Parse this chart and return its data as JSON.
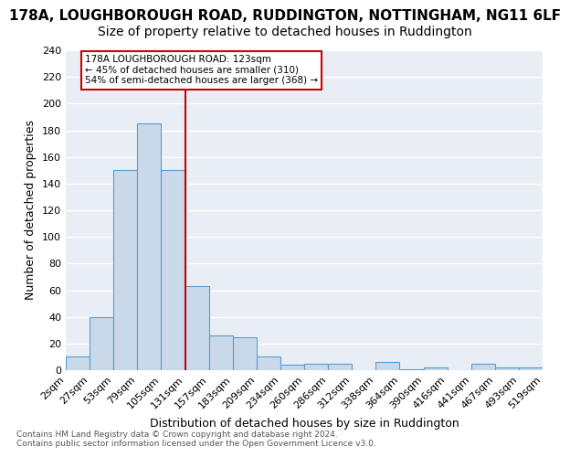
{
  "title_line1": "178A, LOUGHBOROUGH ROAD, RUDDINGTON, NOTTINGHAM, NG11 6LF",
  "title_line2": "Size of property relative to detached houses in Ruddington",
  "xlabel": "Distribution of detached houses by size in Ruddington",
  "ylabel": "Number of detached properties",
  "footer_line1": "Contains HM Land Registry data © Crown copyright and database right 2024.",
  "footer_line2": "Contains public sector information licensed under the Open Government Licence v3.0.",
  "bin_labels": [
    "2sqm",
    "27sqm",
    "53sqm",
    "79sqm",
    "105sqm",
    "131sqm",
    "157sqm",
    "183sqm",
    "209sqm",
    "234sqm",
    "260sqm",
    "286sqm",
    "312sqm",
    "338sqm",
    "364sqm",
    "390sqm",
    "416sqm",
    "441sqm",
    "467sqm",
    "493sqm",
    "519sqm"
  ],
  "bar_values": [
    10,
    40,
    150,
    185,
    150,
    63,
    26,
    25,
    10,
    4,
    5,
    5,
    0,
    6,
    1,
    2,
    0,
    5,
    2,
    2
  ],
  "bar_color": "#c9d9ea",
  "bar_edge_color": "#5b9bd5",
  "vline_x": 4,
  "vline_color": "#cc0000",
  "annotation_text": "178A LOUGHBOROUGH ROAD: 123sqm\n← 45% of detached houses are smaller (310)\n54% of semi-detached houses are larger (368) →",
  "annotation_box_color": "#cc0000",
  "ylim": [
    0,
    240
  ],
  "yticks": [
    0,
    20,
    40,
    60,
    80,
    100,
    120,
    140,
    160,
    180,
    200,
    220,
    240
  ],
  "bg_color": "#e8eef4",
  "grid_color": "#ffffff",
  "title_fontsize": 11,
  "subtitle_fontsize": 10,
  "axis_label_fontsize": 9,
  "tick_fontsize": 8
}
